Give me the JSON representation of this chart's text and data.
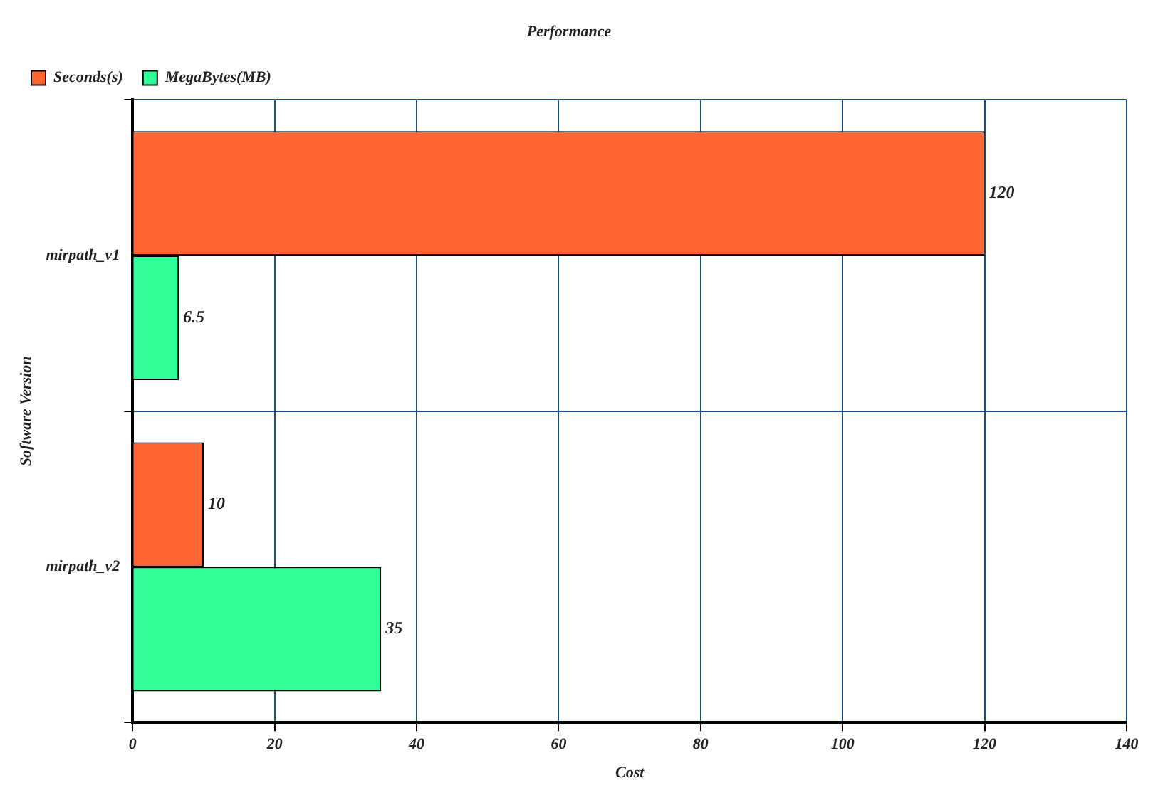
{
  "chart_data": {
    "type": "bar",
    "orientation": "horizontal",
    "title": "Performance",
    "xlabel": "Cost",
    "ylabel": "Software Version",
    "categories": [
      "mirpath_v1",
      "mirpath_v2"
    ],
    "series": [
      {
        "name": "Seconds(s)",
        "color": "#ff6633",
        "values": [
          120,
          10
        ]
      },
      {
        "name": "MegaBytes(MB)",
        "color": "#33ff99",
        "values": [
          6.5,
          35
        ]
      }
    ],
    "xlim": [
      0,
      140
    ],
    "xticks": [
      0,
      20,
      40,
      60,
      80,
      100,
      120,
      140
    ],
    "grid": true,
    "legend": "top left",
    "data_labels": true
  }
}
